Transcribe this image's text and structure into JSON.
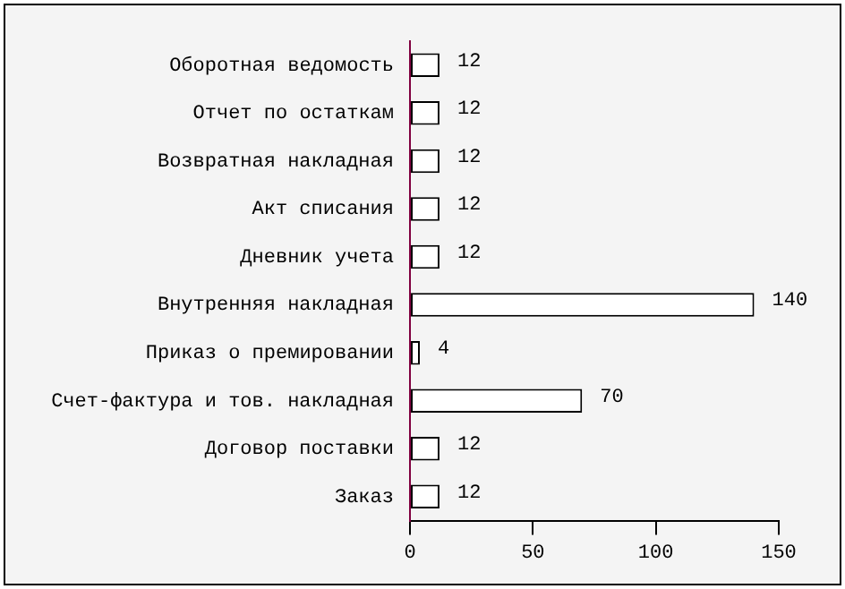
{
  "chart_data": {
    "type": "bar",
    "orientation": "horizontal",
    "categories": [
      "Оборотная ведомость",
      "Отчет по остаткам",
      "Возвратная накладная",
      "Акт списания",
      "Дневник учета",
      "Внутренняя накладная",
      "Приказ о премировании",
      "Счет-фактура и тов. накладная",
      "Договор поставки",
      "Заказ"
    ],
    "values": [
      12,
      12,
      12,
      12,
      12,
      140,
      4,
      70,
      12,
      12
    ],
    "color": "#ffffff",
    "xlim": [
      0,
      150
    ],
    "xticks": [
      0,
      50,
      100,
      150
    ],
    "data_labels": true,
    "grid": false,
    "legend": false
  }
}
